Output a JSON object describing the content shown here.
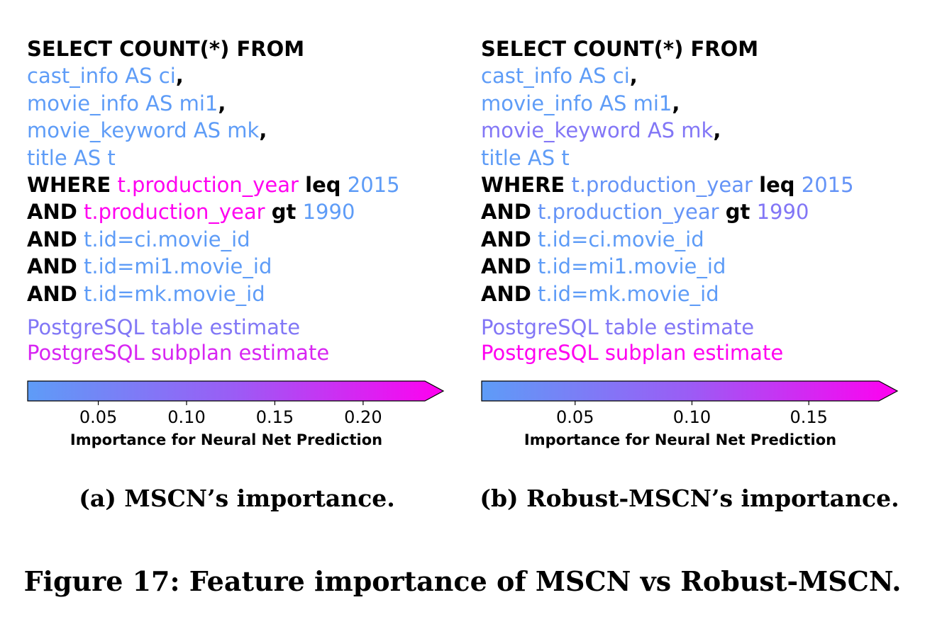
{
  "palette": {
    "low": "#5e9cf7",
    "mid": "#9b5cf5",
    "high": "#ff00f0"
  },
  "panels": [
    {
      "id": "a",
      "caption": "(a)  MSCN’s importance.",
      "sql": {
        "select": "SELECT COUNT(*) FROM",
        "tables": [
          {
            "text": "cast_info AS ci",
            "sep": ",",
            "importance": 0.01
          },
          {
            "text": "movie_info AS mi1",
            "sep": ",",
            "importance": 0.01
          },
          {
            "text": "movie_keyword AS mk",
            "sep": ",",
            "importance": 0.01
          },
          {
            "text": "title AS t",
            "sep": "",
            "importance": 0.01
          }
        ],
        "where": [
          {
            "kw": "WHERE",
            "left": "t.production_year",
            "left_importance": 0.235,
            "op": "leq",
            "right": "2015",
            "right_importance": 0.01
          },
          {
            "kw": "AND",
            "left": "t.production_year",
            "left_importance": 0.235,
            "op": "gt",
            "right": "1990",
            "right_importance": 0.01
          },
          {
            "kw": "AND",
            "left": "t.id=ci.movie_id",
            "left_importance": 0.01,
            "op": "",
            "right": "",
            "right_importance": 0
          },
          {
            "kw": "AND",
            "left": "t.id=mi1.movie_id",
            "left_importance": 0.01,
            "op": "",
            "right": "",
            "right_importance": 0
          },
          {
            "kw": "AND",
            "left": "t.id=mk.movie_id",
            "left_importance": 0.01,
            "op": "",
            "right": "",
            "right_importance": 0
          }
        ],
        "estimates": [
          {
            "text": "PostgreSQL table estimate",
            "importance": 0.075
          },
          {
            "text": "PostgreSQL subplan estimate",
            "importance": 0.19
          }
        ]
      },
      "colorbar": {
        "label": "Importance for Neural Net Prediction",
        "min": 0.01,
        "max": 0.235,
        "ticks": [
          {
            "value": 0.05,
            "label": "0.05"
          },
          {
            "value": 0.1,
            "label": "0.10"
          },
          {
            "value": 0.15,
            "label": "0.15"
          },
          {
            "value": 0.2,
            "label": "0.20"
          }
        ]
      }
    },
    {
      "id": "b",
      "caption": "(b) Robust-MSCN’s importance.",
      "sql": {
        "select": "SELECT COUNT(*) FROM",
        "tables": [
          {
            "text": "cast_info AS ci",
            "sep": ",",
            "importance": 0.01
          },
          {
            "text": "movie_info AS mi1",
            "sep": ",",
            "importance": 0.01
          },
          {
            "text": "movie_keyword AS mk",
            "sep": ",",
            "importance": 0.06
          },
          {
            "text": "title AS t",
            "sep": "",
            "importance": 0.01
          }
        ],
        "where": [
          {
            "kw": "WHERE",
            "left": "t.production_year",
            "left_importance": 0.02,
            "op": "leq",
            "right": "2015",
            "right_importance": 0.02
          },
          {
            "kw": "AND",
            "left": "t.production_year",
            "left_importance": 0.02,
            "op": "gt",
            "right": "1990",
            "right_importance": 0.06
          },
          {
            "kw": "AND",
            "left": "t.id=ci.movie_id",
            "left_importance": 0.01,
            "op": "",
            "right": "",
            "right_importance": 0
          },
          {
            "kw": "AND",
            "left": "t.id=mi1.movie_id",
            "left_importance": 0.01,
            "op": "",
            "right": "",
            "right_importance": 0
          },
          {
            "kw": "AND",
            "left": "t.id=mk.movie_id",
            "left_importance": 0.01,
            "op": "",
            "right": "",
            "right_importance": 0
          }
        ],
        "estimates": [
          {
            "text": "PostgreSQL table estimate",
            "importance": 0.06
          },
          {
            "text": "PostgreSQL subplan estimate",
            "importance": 0.18
          }
        ]
      },
      "colorbar": {
        "label": "Importance for Neural Net Prediction",
        "min": 0.01,
        "max": 0.18,
        "ticks": [
          {
            "value": 0.05,
            "label": "0.05"
          },
          {
            "value": 0.1,
            "label": "0.10"
          },
          {
            "value": 0.15,
            "label": "0.15"
          }
        ]
      }
    }
  ],
  "figure_caption": "Figure 17:  Feature importance of MSCN vs Robust-MSCN."
}
